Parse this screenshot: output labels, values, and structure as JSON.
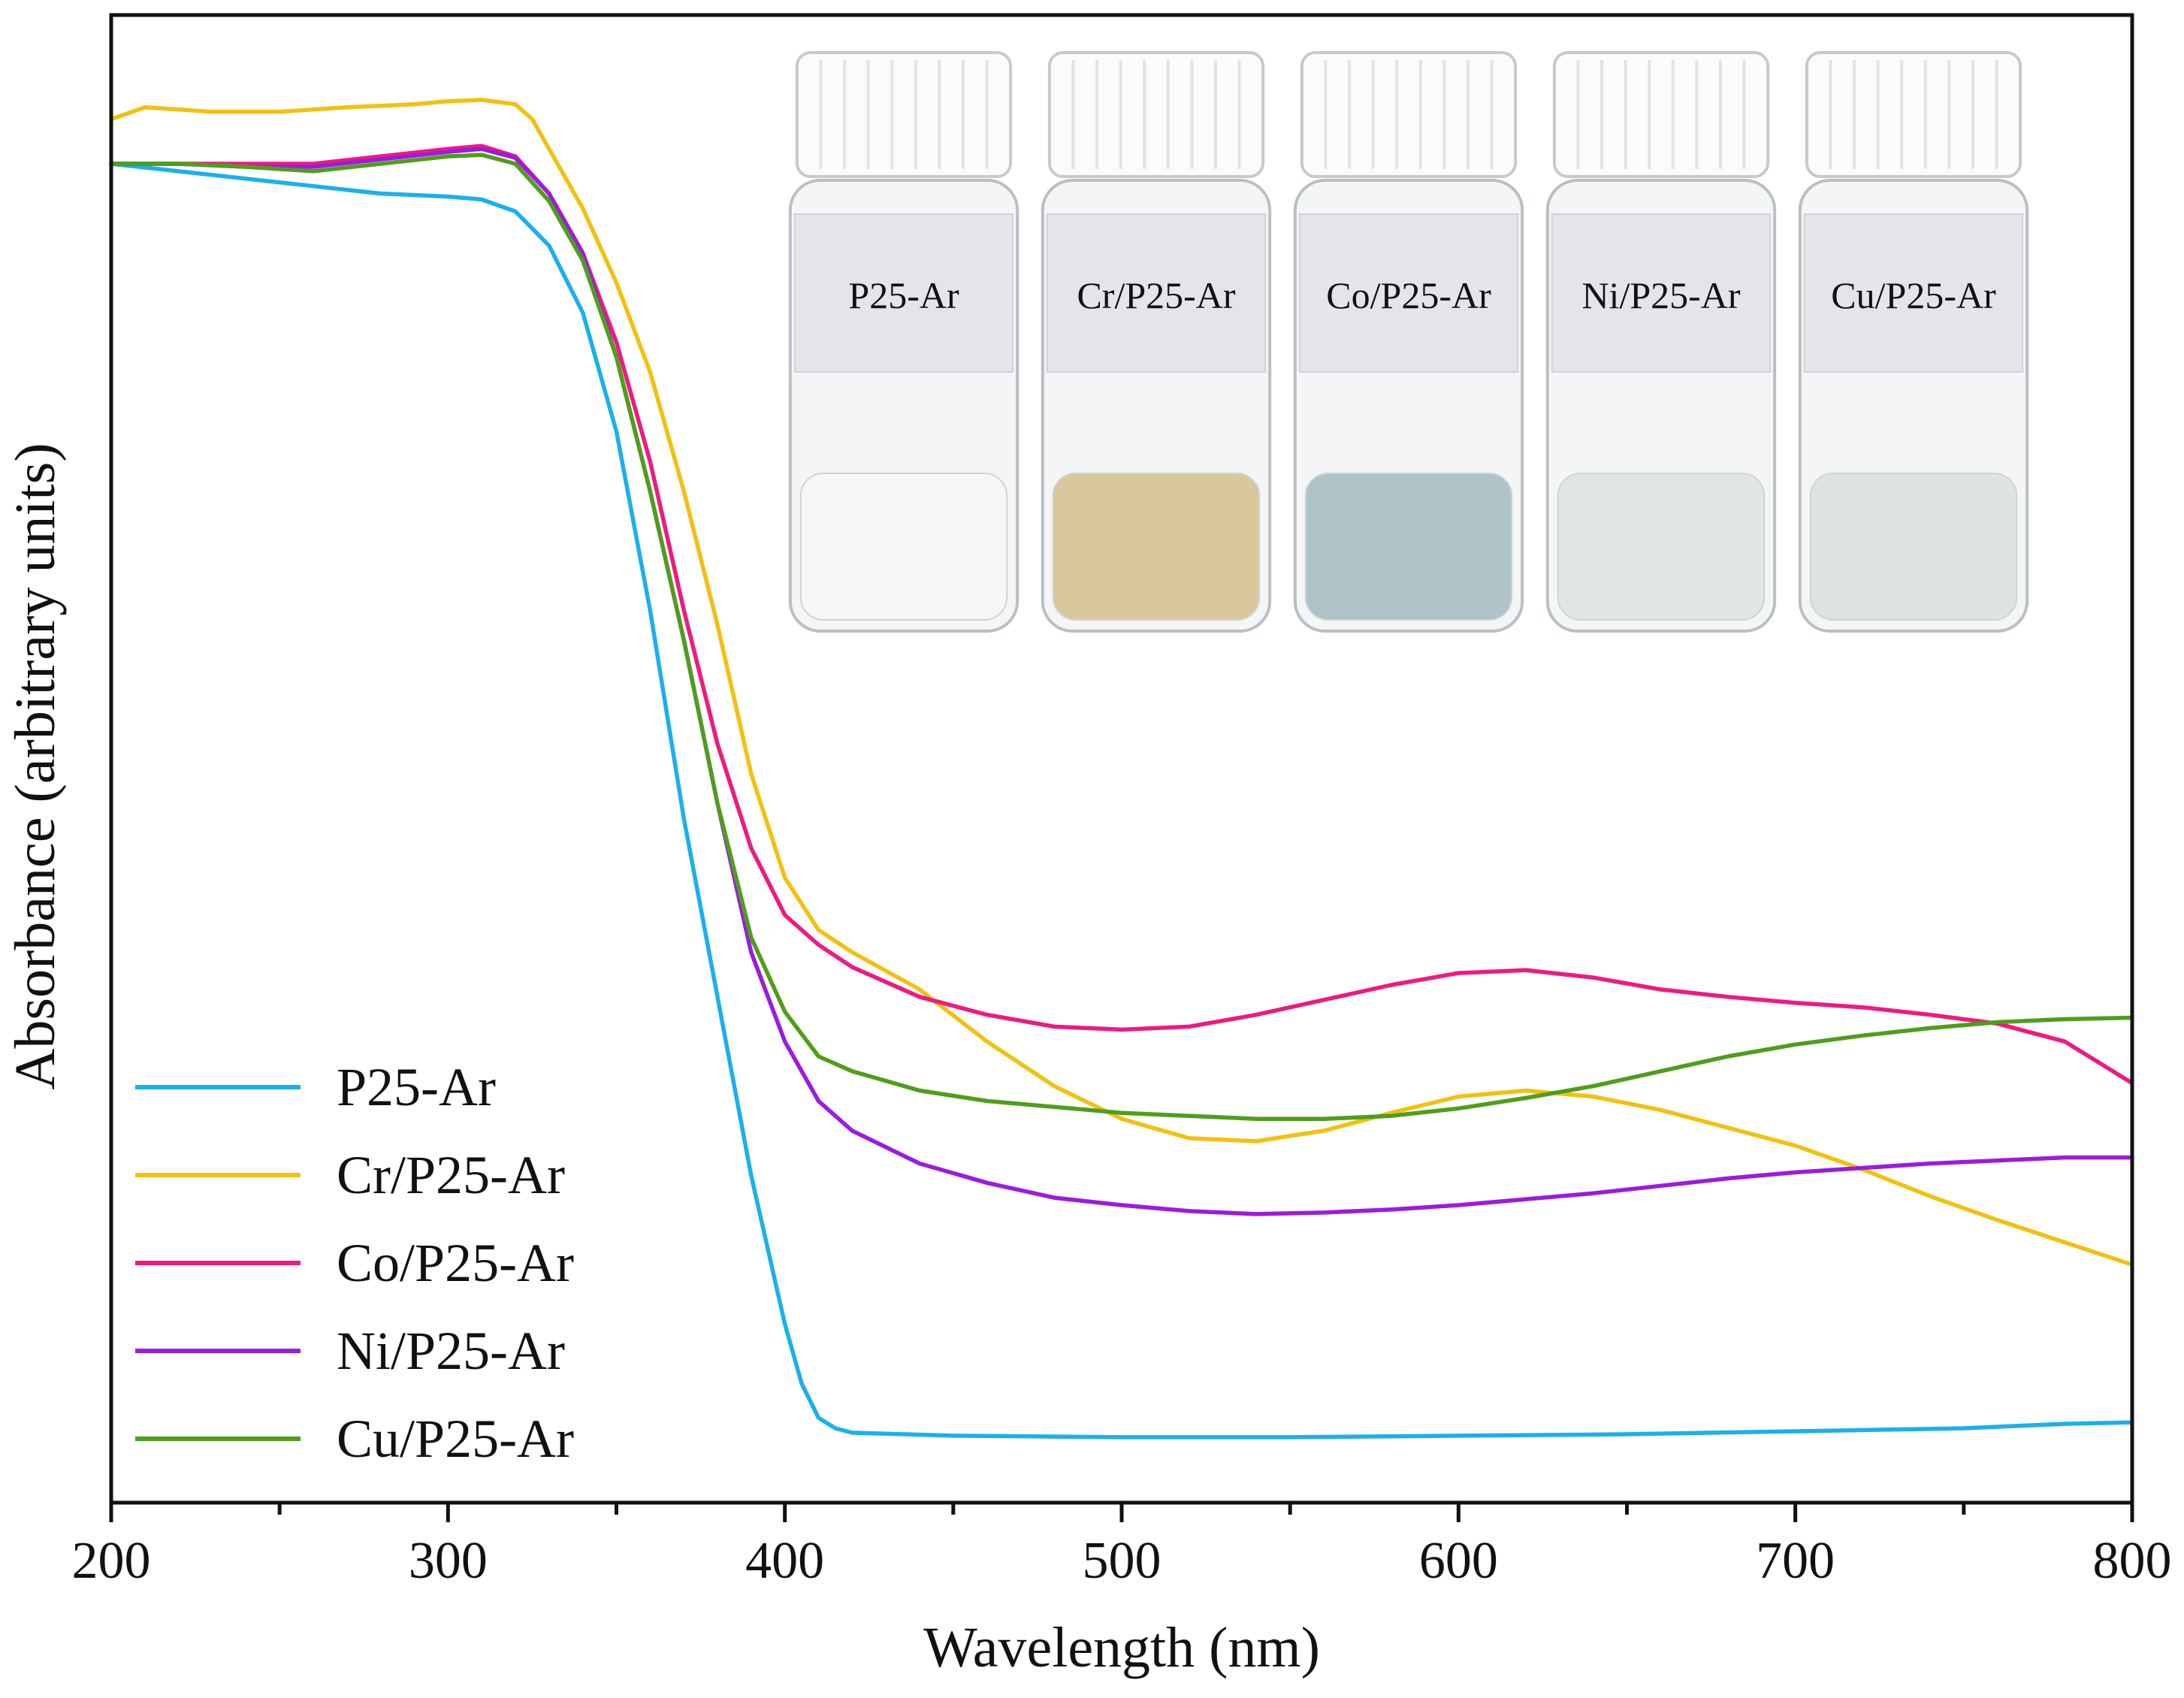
{
  "chart_data": {
    "type": "line",
    "title": "",
    "xlabel": "Wavelength (nm)",
    "ylabel": "Absorbance (arbitrary units)",
    "xlim": [
      200,
      800
    ],
    "ylim": [
      0,
      1
    ],
    "x_ticks": [
      200,
      300,
      400,
      500,
      600,
      700,
      800
    ],
    "x_tick_labels": [
      "200",
      "300",
      "400",
      "500",
      "600",
      "700",
      "800"
    ],
    "y_tick_labels_shown": false,
    "grid": false,
    "legend_position": "bottom-left",
    "series": [
      {
        "name": "P25-Ar",
        "color": "#1ab0ec",
        "points": [
          [
            200,
            0.9
          ],
          [
            220,
            0.895
          ],
          [
            240,
            0.89
          ],
          [
            260,
            0.885
          ],
          [
            280,
            0.88
          ],
          [
            300,
            0.878
          ],
          [
            310,
            0.876
          ],
          [
            320,
            0.868
          ],
          [
            330,
            0.845
          ],
          [
            340,
            0.8
          ],
          [
            350,
            0.72
          ],
          [
            360,
            0.6
          ],
          [
            370,
            0.46
          ],
          [
            380,
            0.34
          ],
          [
            390,
            0.22
          ],
          [
            400,
            0.12
          ],
          [
            405,
            0.08
          ],
          [
            410,
            0.057
          ],
          [
            415,
            0.05
          ],
          [
            420,
            0.047
          ],
          [
            450,
            0.045
          ],
          [
            500,
            0.044
          ],
          [
            550,
            0.044
          ],
          [
            600,
            0.045
          ],
          [
            650,
            0.046
          ],
          [
            700,
            0.048
          ],
          [
            750,
            0.05
          ],
          [
            780,
            0.053
          ],
          [
            800,
            0.054
          ]
        ]
      },
      {
        "name": "Cr/P25-Ar",
        "color": "#f2c10f",
        "points": [
          [
            200,
            0.93
          ],
          [
            210,
            0.938
          ],
          [
            230,
            0.935
          ],
          [
            250,
            0.935
          ],
          [
            270,
            0.938
          ],
          [
            290,
            0.94
          ],
          [
            300,
            0.942
          ],
          [
            310,
            0.943
          ],
          [
            320,
            0.94
          ],
          [
            325,
            0.93
          ],
          [
            330,
            0.91
          ],
          [
            340,
            0.87
          ],
          [
            350,
            0.82
          ],
          [
            360,
            0.76
          ],
          [
            370,
            0.68
          ],
          [
            380,
            0.59
          ],
          [
            390,
            0.49
          ],
          [
            400,
            0.42
          ],
          [
            410,
            0.385
          ],
          [
            420,
            0.37
          ],
          [
            440,
            0.345
          ],
          [
            460,
            0.31
          ],
          [
            480,
            0.28
          ],
          [
            500,
            0.258
          ],
          [
            520,
            0.245
          ],
          [
            540,
            0.243
          ],
          [
            560,
            0.25
          ],
          [
            580,
            0.262
          ],
          [
            600,
            0.273
          ],
          [
            620,
            0.277
          ],
          [
            640,
            0.273
          ],
          [
            660,
            0.264
          ],
          [
            680,
            0.252
          ],
          [
            700,
            0.24
          ],
          [
            720,
            0.224
          ],
          [
            740,
            0.206
          ],
          [
            760,
            0.19
          ],
          [
            780,
            0.175
          ],
          [
            800,
            0.16
          ]
        ]
      },
      {
        "name": "Co/P25-Ar",
        "color": "#ef1a7f",
        "points": [
          [
            200,
            0.9
          ],
          [
            220,
            0.9
          ],
          [
            240,
            0.9
          ],
          [
            260,
            0.9
          ],
          [
            280,
            0.905
          ],
          [
            300,
            0.91
          ],
          [
            310,
            0.912
          ],
          [
            320,
            0.905
          ],
          [
            330,
            0.88
          ],
          [
            340,
            0.84
          ],
          [
            350,
            0.78
          ],
          [
            360,
            0.7
          ],
          [
            370,
            0.6
          ],
          [
            380,
            0.51
          ],
          [
            390,
            0.44
          ],
          [
            400,
            0.395
          ],
          [
            410,
            0.375
          ],
          [
            420,
            0.36
          ],
          [
            440,
            0.34
          ],
          [
            460,
            0.328
          ],
          [
            480,
            0.32
          ],
          [
            500,
            0.318
          ],
          [
            520,
            0.32
          ],
          [
            540,
            0.328
          ],
          [
            560,
            0.338
          ],
          [
            580,
            0.348
          ],
          [
            600,
            0.356
          ],
          [
            620,
            0.358
          ],
          [
            640,
            0.353
          ],
          [
            660,
            0.345
          ],
          [
            680,
            0.34
          ],
          [
            700,
            0.336
          ],
          [
            720,
            0.333
          ],
          [
            740,
            0.328
          ],
          [
            760,
            0.322
          ],
          [
            780,
            0.31
          ],
          [
            800,
            0.282
          ]
        ]
      },
      {
        "name": "Ni/P25-Ar",
        "color": "#9b1be0",
        "points": [
          [
            200,
            0.9
          ],
          [
            220,
            0.9
          ],
          [
            240,
            0.898
          ],
          [
            260,
            0.898
          ],
          [
            280,
            0.903
          ],
          [
            300,
            0.908
          ],
          [
            310,
            0.91
          ],
          [
            320,
            0.904
          ],
          [
            330,
            0.88
          ],
          [
            340,
            0.84
          ],
          [
            350,
            0.77
          ],
          [
            360,
            0.68
          ],
          [
            370,
            0.58
          ],
          [
            380,
            0.47
          ],
          [
            390,
            0.37
          ],
          [
            400,
            0.31
          ],
          [
            410,
            0.27
          ],
          [
            420,
            0.25
          ],
          [
            440,
            0.228
          ],
          [
            460,
            0.215
          ],
          [
            480,
            0.205
          ],
          [
            500,
            0.2
          ],
          [
            520,
            0.196
          ],
          [
            540,
            0.194
          ],
          [
            560,
            0.195
          ],
          [
            580,
            0.197
          ],
          [
            600,
            0.2
          ],
          [
            620,
            0.204
          ],
          [
            640,
            0.208
          ],
          [
            660,
            0.213
          ],
          [
            680,
            0.218
          ],
          [
            700,
            0.222
          ],
          [
            720,
            0.225
          ],
          [
            740,
            0.228
          ],
          [
            760,
            0.23
          ],
          [
            780,
            0.232
          ],
          [
            800,
            0.232
          ]
        ]
      },
      {
        "name": "Cu/P25-Ar",
        "color": "#4f9e1b",
        "points": [
          [
            200,
            0.9
          ],
          [
            220,
            0.9
          ],
          [
            240,
            0.898
          ],
          [
            260,
            0.895
          ],
          [
            280,
            0.9
          ],
          [
            300,
            0.905
          ],
          [
            310,
            0.906
          ],
          [
            320,
            0.9
          ],
          [
            330,
            0.875
          ],
          [
            340,
            0.835
          ],
          [
            350,
            0.77
          ],
          [
            360,
            0.68
          ],
          [
            370,
            0.58
          ],
          [
            380,
            0.47
          ],
          [
            390,
            0.38
          ],
          [
            400,
            0.33
          ],
          [
            410,
            0.3
          ],
          [
            420,
            0.29
          ],
          [
            440,
            0.277
          ],
          [
            460,
            0.27
          ],
          [
            480,
            0.266
          ],
          [
            500,
            0.262
          ],
          [
            520,
            0.26
          ],
          [
            540,
            0.258
          ],
          [
            560,
            0.258
          ],
          [
            580,
            0.26
          ],
          [
            600,
            0.265
          ],
          [
            620,
            0.272
          ],
          [
            640,
            0.28
          ],
          [
            660,
            0.29
          ],
          [
            680,
            0.3
          ],
          [
            700,
            0.308
          ],
          [
            720,
            0.314
          ],
          [
            740,
            0.319
          ],
          [
            760,
            0.323
          ],
          [
            780,
            0.325
          ],
          [
            800,
            0.326
          ]
        ]
      }
    ],
    "inset": {
      "description": "photo of five sample vials",
      "vials": [
        {
          "label": "P25-Ar",
          "powder_color": "#f6f6f7"
        },
        {
          "label": "Cr/P25-Ar",
          "powder_color": "#d9c89c"
        },
        {
          "label": "Co/P25-Ar",
          "powder_color": "#aec3c8"
        },
        {
          "label": "Ni/P25-Ar",
          "powder_color": "#e2e6e3"
        },
        {
          "label": "Cu/P25-Ar",
          "powder_color": "#dfe3df"
        }
      ]
    }
  }
}
